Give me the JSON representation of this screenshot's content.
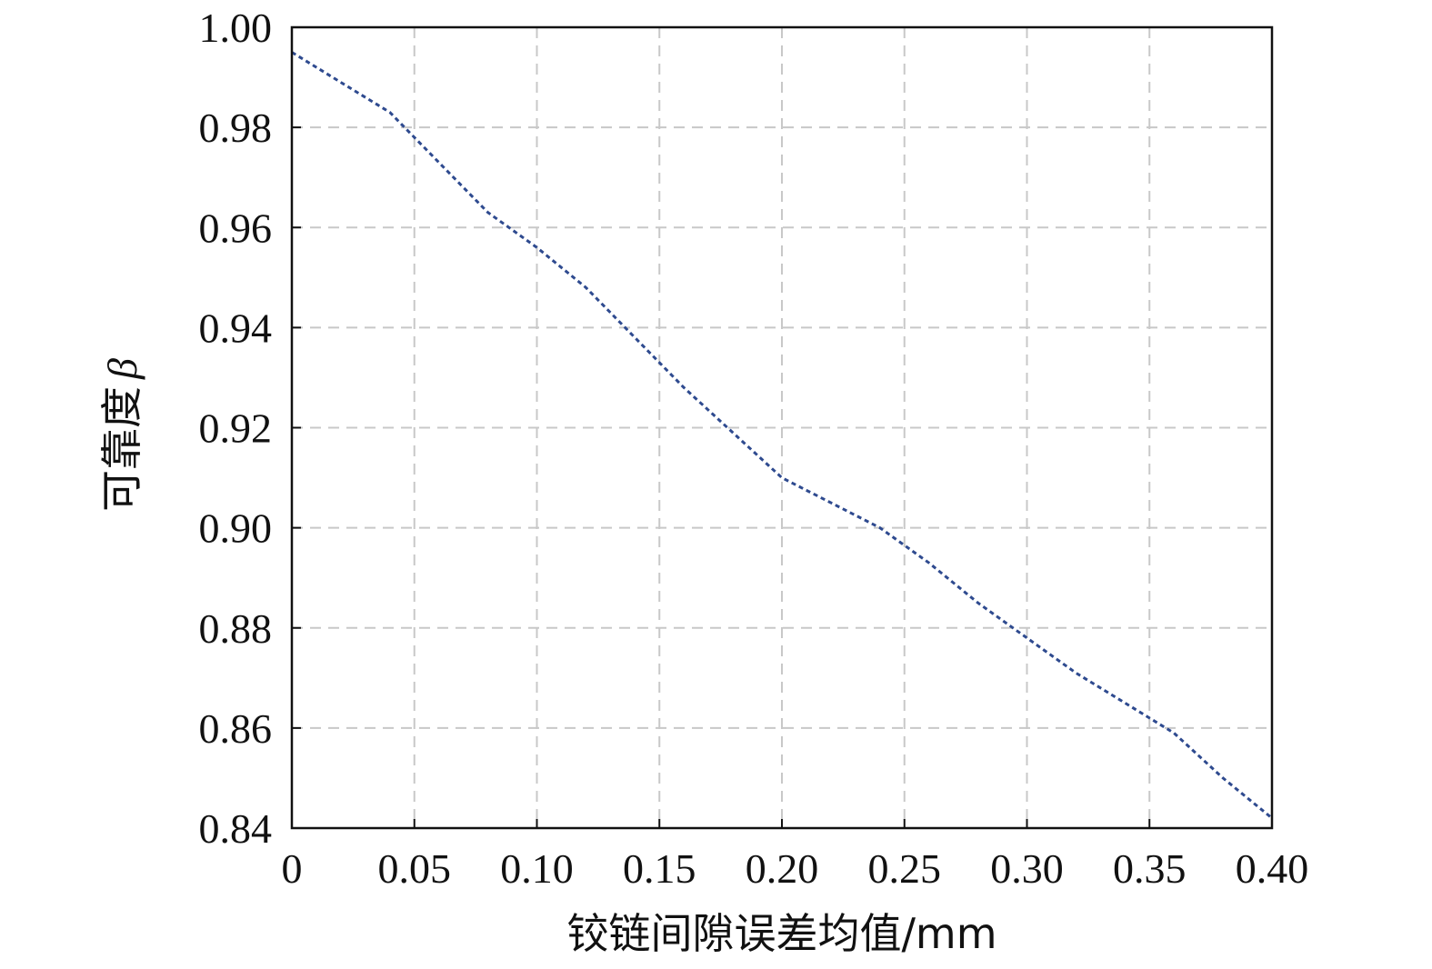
{
  "chart_data": {
    "type": "line",
    "title": "",
    "xlabel": "铰链间隙误差均值/mm",
    "ylabel_text": "可靠度",
    "ylabel_symbol": "β",
    "xlim": [
      0,
      0.4
    ],
    "ylim": [
      0.84,
      1.0
    ],
    "x_ticks": [
      0,
      0.05,
      0.1,
      0.15,
      0.2,
      0.25,
      0.3,
      0.35,
      0.4
    ],
    "x_tick_labels": [
      "0",
      "0.05",
      "0.10",
      "0.15",
      "0.20",
      "0.25",
      "0.30",
      "0.35",
      "0.40"
    ],
    "y_ticks": [
      0.84,
      0.86,
      0.88,
      0.9,
      0.92,
      0.94,
      0.96,
      0.98,
      1.0
    ],
    "y_tick_labels": [
      "0.84",
      "0.86",
      "0.88",
      "0.90",
      "0.92",
      "0.94",
      "0.96",
      "0.98",
      "1.00"
    ],
    "grid": true,
    "grid_style": "dashed",
    "line_color": "#2e4a8f",
    "grid_color": "#c8c8c8",
    "series": [
      {
        "line_style": "dotted",
        "x": [
          0,
          0.02,
          0.04,
          0.06,
          0.08,
          0.1,
          0.12,
          0.14,
          0.16,
          0.18,
          0.2,
          0.22,
          0.24,
          0.26,
          0.28,
          0.3,
          0.32,
          0.34,
          0.36,
          0.38,
          0.4
        ],
        "y": [
          0.995,
          0.989,
          0.983,
          0.973,
          0.963,
          0.956,
          0.948,
          0.938,
          0.928,
          0.919,
          0.91,
          0.905,
          0.9,
          0.893,
          0.885,
          0.878,
          0.871,
          0.865,
          0.859,
          0.85,
          0.842
        ]
      }
    ]
  }
}
